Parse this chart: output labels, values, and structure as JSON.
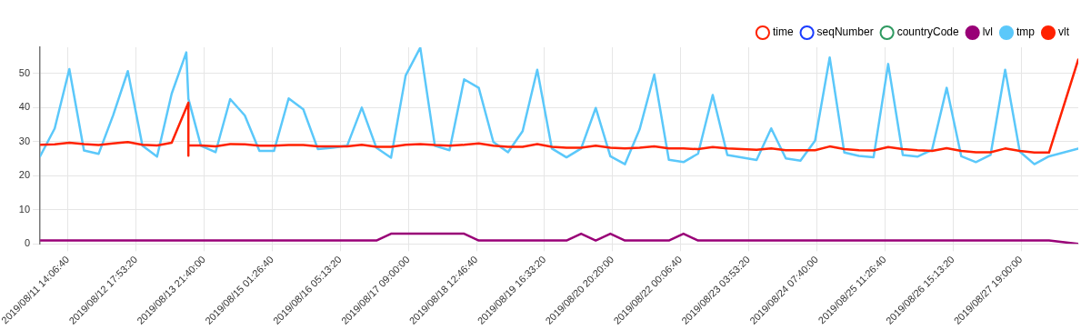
{
  "chart_data": {
    "type": "line",
    "x": [
      "2019-08-11T02:44",
      "2019-08-11T08:42",
      "2019-08-11T14:40",
      "2019-08-11T20:38",
      "2019-08-12T02:36",
      "2019-08-12T08:34",
      "2019-08-12T14:32",
      "2019-08-12T20:30",
      "2019-08-13T02:28",
      "2019-08-13T08:26",
      "2019-08-13T14:24",
      "2019-08-13T15:15",
      "2019-08-13T20:22",
      "2019-08-14T02:20",
      "2019-08-14T08:18",
      "2019-08-14T14:16",
      "2019-08-14T20:14",
      "2019-08-15T02:12",
      "2019-08-15T08:10",
      "2019-08-15T14:08",
      "2019-08-15T20:06",
      "2019-08-16T02:04",
      "2019-08-16T08:02",
      "2019-08-16T14:00",
      "2019-08-16T19:58",
      "2019-08-17T01:56",
      "2019-08-17T07:54",
      "2019-08-17T13:52",
      "2019-08-17T19:50",
      "2019-08-18T01:48",
      "2019-08-18T07:46",
      "2019-08-18T13:44",
      "2019-08-18T19:42",
      "2019-08-19T01:40",
      "2019-08-19T07:38",
      "2019-08-19T13:36",
      "2019-08-19T19:34",
      "2019-08-20T01:32",
      "2019-08-20T07:30",
      "2019-08-20T13:28",
      "2019-08-20T19:26",
      "2019-08-21T01:24",
      "2019-08-21T07:22",
      "2019-08-21T13:20",
      "2019-08-21T19:18",
      "2019-08-22T01:16",
      "2019-08-22T07:14",
      "2019-08-22T13:12",
      "2019-08-22T19:10",
      "2019-08-23T07:06",
      "2019-08-23T13:04",
      "2019-08-23T19:02",
      "2019-08-24T01:00",
      "2019-08-24T06:58",
      "2019-08-24T12:56",
      "2019-08-24T18:54",
      "2019-08-25T00:52",
      "2019-08-25T06:50",
      "2019-08-25T12:48",
      "2019-08-25T18:46",
      "2019-08-26T00:44",
      "2019-08-26T06:42",
      "2019-08-26T12:40",
      "2019-08-26T18:38",
      "2019-08-27T00:36",
      "2019-08-27T06:34",
      "2019-08-27T12:32",
      "2019-08-27T18:30",
      "2019-08-28T00:28",
      "2019-08-28T06:26",
      "2019-08-28T18:22"
    ],
    "series": [
      {
        "name": "time",
        "color": "#ff2200",
        "values": [
          null,
          null,
          null,
          null,
          null,
          null,
          null,
          null,
          null,
          null,
          null,
          null,
          null,
          null,
          null,
          null,
          null,
          null,
          null,
          null,
          null,
          null,
          null,
          null,
          null,
          null,
          null,
          null,
          null,
          null,
          null,
          null,
          null,
          null,
          null,
          null,
          null,
          null,
          null,
          null,
          null,
          null,
          null,
          null,
          null,
          null,
          null,
          null,
          null,
          null,
          null,
          null,
          null,
          null,
          null,
          null,
          null,
          null,
          null,
          null,
          null,
          null,
          null,
          null,
          null,
          null,
          null,
          null,
          null,
          null,
          null
        ]
      },
      {
        "name": "seqNumber",
        "color": "#1a3cff",
        "values": [
          null,
          null,
          null,
          null,
          null,
          null,
          null,
          null,
          null,
          null,
          null,
          null,
          null,
          null,
          null,
          null,
          null,
          null,
          null,
          null,
          null,
          null,
          null,
          null,
          null,
          null,
          null,
          null,
          null,
          null,
          null,
          null,
          null,
          null,
          null,
          null,
          null,
          null,
          null,
          null,
          null,
          null,
          null,
          null,
          null,
          null,
          null,
          null,
          null,
          null,
          null,
          null,
          null,
          null,
          null,
          null,
          null,
          null,
          null,
          null,
          null,
          null,
          null,
          null,
          null,
          null,
          null,
          null,
          null,
          null,
          null
        ]
      },
      {
        "name": "countryCode",
        "color": "#2e9960",
        "values": [
          null,
          null,
          null,
          null,
          null,
          null,
          null,
          null,
          null,
          null,
          null,
          null,
          null,
          null,
          null,
          null,
          null,
          null,
          null,
          null,
          null,
          null,
          null,
          null,
          null,
          null,
          null,
          null,
          null,
          null,
          null,
          null,
          null,
          null,
          null,
          null,
          null,
          null,
          null,
          null,
          null,
          null,
          null,
          null,
          null,
          null,
          null,
          null,
          null,
          null,
          null,
          null,
          null,
          null,
          null,
          null,
          null,
          null,
          null,
          null,
          null,
          null,
          null,
          null,
          null,
          null,
          null,
          null,
          null,
          null,
          null
        ]
      },
      {
        "name": "lvl",
        "color": "#990077",
        "values": [
          1,
          1,
          1,
          1,
          1,
          1,
          1,
          1,
          1,
          1,
          1,
          1,
          1,
          1,
          1,
          1,
          1,
          1,
          1,
          1,
          1,
          1,
          1,
          1,
          1,
          3,
          3,
          3,
          3,
          3,
          3,
          1,
          1,
          1,
          1,
          1,
          1,
          1,
          3,
          1,
          3,
          1,
          1,
          1,
          1,
          3,
          1,
          1,
          1,
          1,
          1,
          1,
          1,
          1,
          1,
          1,
          1,
          1,
          1,
          1,
          1,
          1,
          1,
          1,
          1,
          1,
          1,
          1,
          1,
          1,
          0
        ]
      },
      {
        "name": "tmp",
        "color": "#5bc8fa",
        "values": [
          25.7,
          33.9,
          51.3,
          27.4,
          26.4,
          37.8,
          50.7,
          28.8,
          25.6,
          44.1,
          56.2,
          42.6,
          28.8,
          26.9,
          42.5,
          37.7,
          27.3,
          27.3,
          42.7,
          39.5,
          27.8,
          28.2,
          28.8,
          40.0,
          28.2,
          25.3,
          49.4,
          57.6,
          28.8,
          27.5,
          48.3,
          45.8,
          29.9,
          26.9,
          33.1,
          51.1,
          28.0,
          25.4,
          28.0,
          39.9,
          25.7,
          23.4,
          33.6,
          49.7,
          24.7,
          24.0,
          26.5,
          43.7,
          26.1,
          24.6,
          33.9,
          25.1,
          24.4,
          30.3,
          54.7,
          26.8,
          25.8,
          25.4,
          52.8,
          26.1,
          25.6,
          27.6,
          45.8,
          25.7,
          24.0,
          26.1,
          51.1,
          27.1,
          23.4,
          25.7,
          28.0
        ]
      },
      {
        "name": "vlt",
        "color": "#ff2200",
        "x": [
          "2019-08-11T02:44",
          "2019-08-11T08:42",
          "2019-08-11T14:40",
          "2019-08-11T20:38",
          "2019-08-12T02:36",
          "2019-08-12T08:34",
          "2019-08-12T14:32",
          "2019-08-12T20:30",
          "2019-08-13T02:28",
          "2019-08-13T08:26",
          "2019-08-13T15:15",
          "2019-08-13T15:15",
          "2019-08-13T15:15",
          "2019-08-13T20:22",
          "2019-08-14T02:20",
          "2019-08-14T08:18",
          "2019-08-14T14:16",
          "2019-08-14T20:14",
          "2019-08-15T02:12",
          "2019-08-15T08:10",
          "2019-08-15T14:08",
          "2019-08-15T20:06",
          "2019-08-16T02:04",
          "2019-08-16T08:02",
          "2019-08-16T14:00",
          "2019-08-16T19:58",
          "2019-08-17T01:56",
          "2019-08-17T07:54",
          "2019-08-17T13:52",
          "2019-08-17T19:50",
          "2019-08-18T01:48",
          "2019-08-18T07:46",
          "2019-08-18T13:44",
          "2019-08-18T19:42",
          "2019-08-19T01:40",
          "2019-08-19T07:38",
          "2019-08-19T13:36",
          "2019-08-19T19:34",
          "2019-08-20T01:32",
          "2019-08-20T07:30",
          "2019-08-20T13:28",
          "2019-08-20T19:26",
          "2019-08-21T01:24",
          "2019-08-21T07:22",
          "2019-08-21T13:20",
          "2019-08-21T19:18",
          "2019-08-22T01:16",
          "2019-08-22T07:14",
          "2019-08-22T13:12",
          "2019-08-22T19:10",
          "2019-08-23T07:06",
          "2019-08-23T13:04",
          "2019-08-23T19:02",
          "2019-08-24T01:00",
          "2019-08-24T06:58",
          "2019-08-24T12:56",
          "2019-08-24T18:54",
          "2019-08-25T00:52",
          "2019-08-25T06:50",
          "2019-08-25T12:48",
          "2019-08-25T18:46",
          "2019-08-26T00:44",
          "2019-08-26T06:42",
          "2019-08-26T12:40",
          "2019-08-26T18:38",
          "2019-08-27T00:36",
          "2019-08-27T06:34",
          "2019-08-27T12:32",
          "2019-08-27T18:30",
          "2019-08-28T00:28",
          "2019-08-28T06:26",
          "2019-08-28T18:22"
        ],
        "values": [
          29.1,
          29.2,
          29.7,
          29.3,
          29.0,
          29.5,
          29.9,
          29.1,
          28.9,
          29.7,
          41.4,
          25.9,
          28.9,
          28.9,
          28.6,
          29.3,
          29.2,
          28.8,
          28.8,
          29.0,
          29.0,
          28.6,
          28.6,
          28.6,
          29.1,
          28.5,
          28.5,
          29.1,
          29.3,
          29.0,
          28.8,
          29.1,
          29.5,
          28.8,
          28.5,
          28.5,
          29.3,
          28.5,
          28.2,
          28.2,
          28.8,
          28.2,
          28.0,
          28.2,
          28.6,
          28.0,
          28.0,
          27.8,
          28.4,
          28.0,
          27.6,
          28.0,
          27.5,
          27.5,
          27.5,
          28.6,
          27.8,
          27.5,
          27.4,
          28.4,
          27.8,
          27.5,
          27.3,
          28.1,
          27.3,
          26.9,
          26.9,
          28.0,
          27.3,
          26.8,
          26.8,
          54.1
        ]
      }
    ],
    "xlim": [
      "2019-08-11T02:44",
      "2019-08-28T18:22"
    ],
    "xticks": [
      {
        "value": "2019-08-11T14:06:40",
        "label": "2019/08/11 14:06:40"
      },
      {
        "value": "2019-08-12T17:53:20",
        "label": "2019/08/12 17:53:20"
      },
      {
        "value": "2019-08-13T21:40:00",
        "label": "2019/08/13 21:40:00"
      },
      {
        "value": "2019-08-15T01:26:40",
        "label": "2019/08/15 01:26:40"
      },
      {
        "value": "2019-08-16T05:13:20",
        "label": "2019/08/16 05:13:20"
      },
      {
        "value": "2019-08-17T09:00:00",
        "label": "2019/08/17 09:00:00"
      },
      {
        "value": "2019-08-18T12:46:40",
        "label": "2019/08/18 12:46:40"
      },
      {
        "value": "2019-08-19T16:33:20",
        "label": "2019/08/19 16:33:20"
      },
      {
        "value": "2019-08-20T20:20:00",
        "label": "2019/08/20 20:20:00"
      },
      {
        "value": "2019-08-22T00:06:40",
        "label": "2019/08/22 00:06:40"
      },
      {
        "value": "2019-08-23T03:53:20",
        "label": "2019/08/23 03:53:20"
      },
      {
        "value": "2019-08-24T07:40:00",
        "label": "2019/08/24 07:40:00"
      },
      {
        "value": "2019-08-25T11:26:40",
        "label": "2019/08/25 11:26:40"
      },
      {
        "value": "2019-08-26T15:13:20",
        "label": "2019/08/26 15:13:20"
      },
      {
        "value": "2019-08-27T19:00:00",
        "label": "2019/08/27 19:00:00"
      }
    ],
    "ylim": [
      0,
      57.7
    ],
    "yticks": [
      0,
      10,
      20,
      30,
      40,
      50
    ],
    "grid": true,
    "legend": "top right",
    "marker": "none",
    "line_style": "solid"
  }
}
